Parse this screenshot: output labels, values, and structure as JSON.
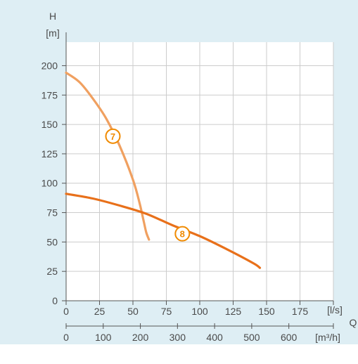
{
  "chart_data": {
    "type": "line",
    "title": "",
    "colors": {
      "panel_background": "#deeef4",
      "plot_background": "#ffffff",
      "curve_7": "#f0a060",
      "curve_8": "#e8701a",
      "label_stroke": "#f08a00",
      "axis": "#555555",
      "grid": "#cccccc"
    },
    "y_axis": {
      "label": "H",
      "unit": "[m]",
      "ticks": [
        0,
        25,
        50,
        75,
        100,
        125,
        150,
        175,
        200
      ],
      "range": [
        0,
        220
      ]
    },
    "x_axis_primary": {
      "label": "Q",
      "unit": "[l/s]",
      "ticks": [
        0,
        25,
        50,
        75,
        100,
        125,
        150,
        175
      ],
      "range": [
        0,
        200
      ]
    },
    "x_axis_secondary": {
      "unit": "[m³/h]",
      "ticks": [
        0,
        100,
        200,
        300,
        400,
        500,
        600
      ],
      "range": [
        0,
        720
      ]
    },
    "grid": true,
    "series": [
      {
        "name": "7",
        "x": [
          0,
          10,
          20,
          30,
          40,
          50,
          55,
          58,
          60,
          62
        ],
        "y": [
          194,
          186,
          172,
          155,
          132,
          103,
          83,
          68,
          58,
          52
        ]
      },
      {
        "name": "8",
        "x": [
          0,
          20,
          40,
          60,
          80,
          100,
          120,
          140,
          145
        ],
        "y": [
          91,
          87,
          81,
          74,
          64,
          55,
          44,
          32,
          28
        ]
      }
    ]
  }
}
